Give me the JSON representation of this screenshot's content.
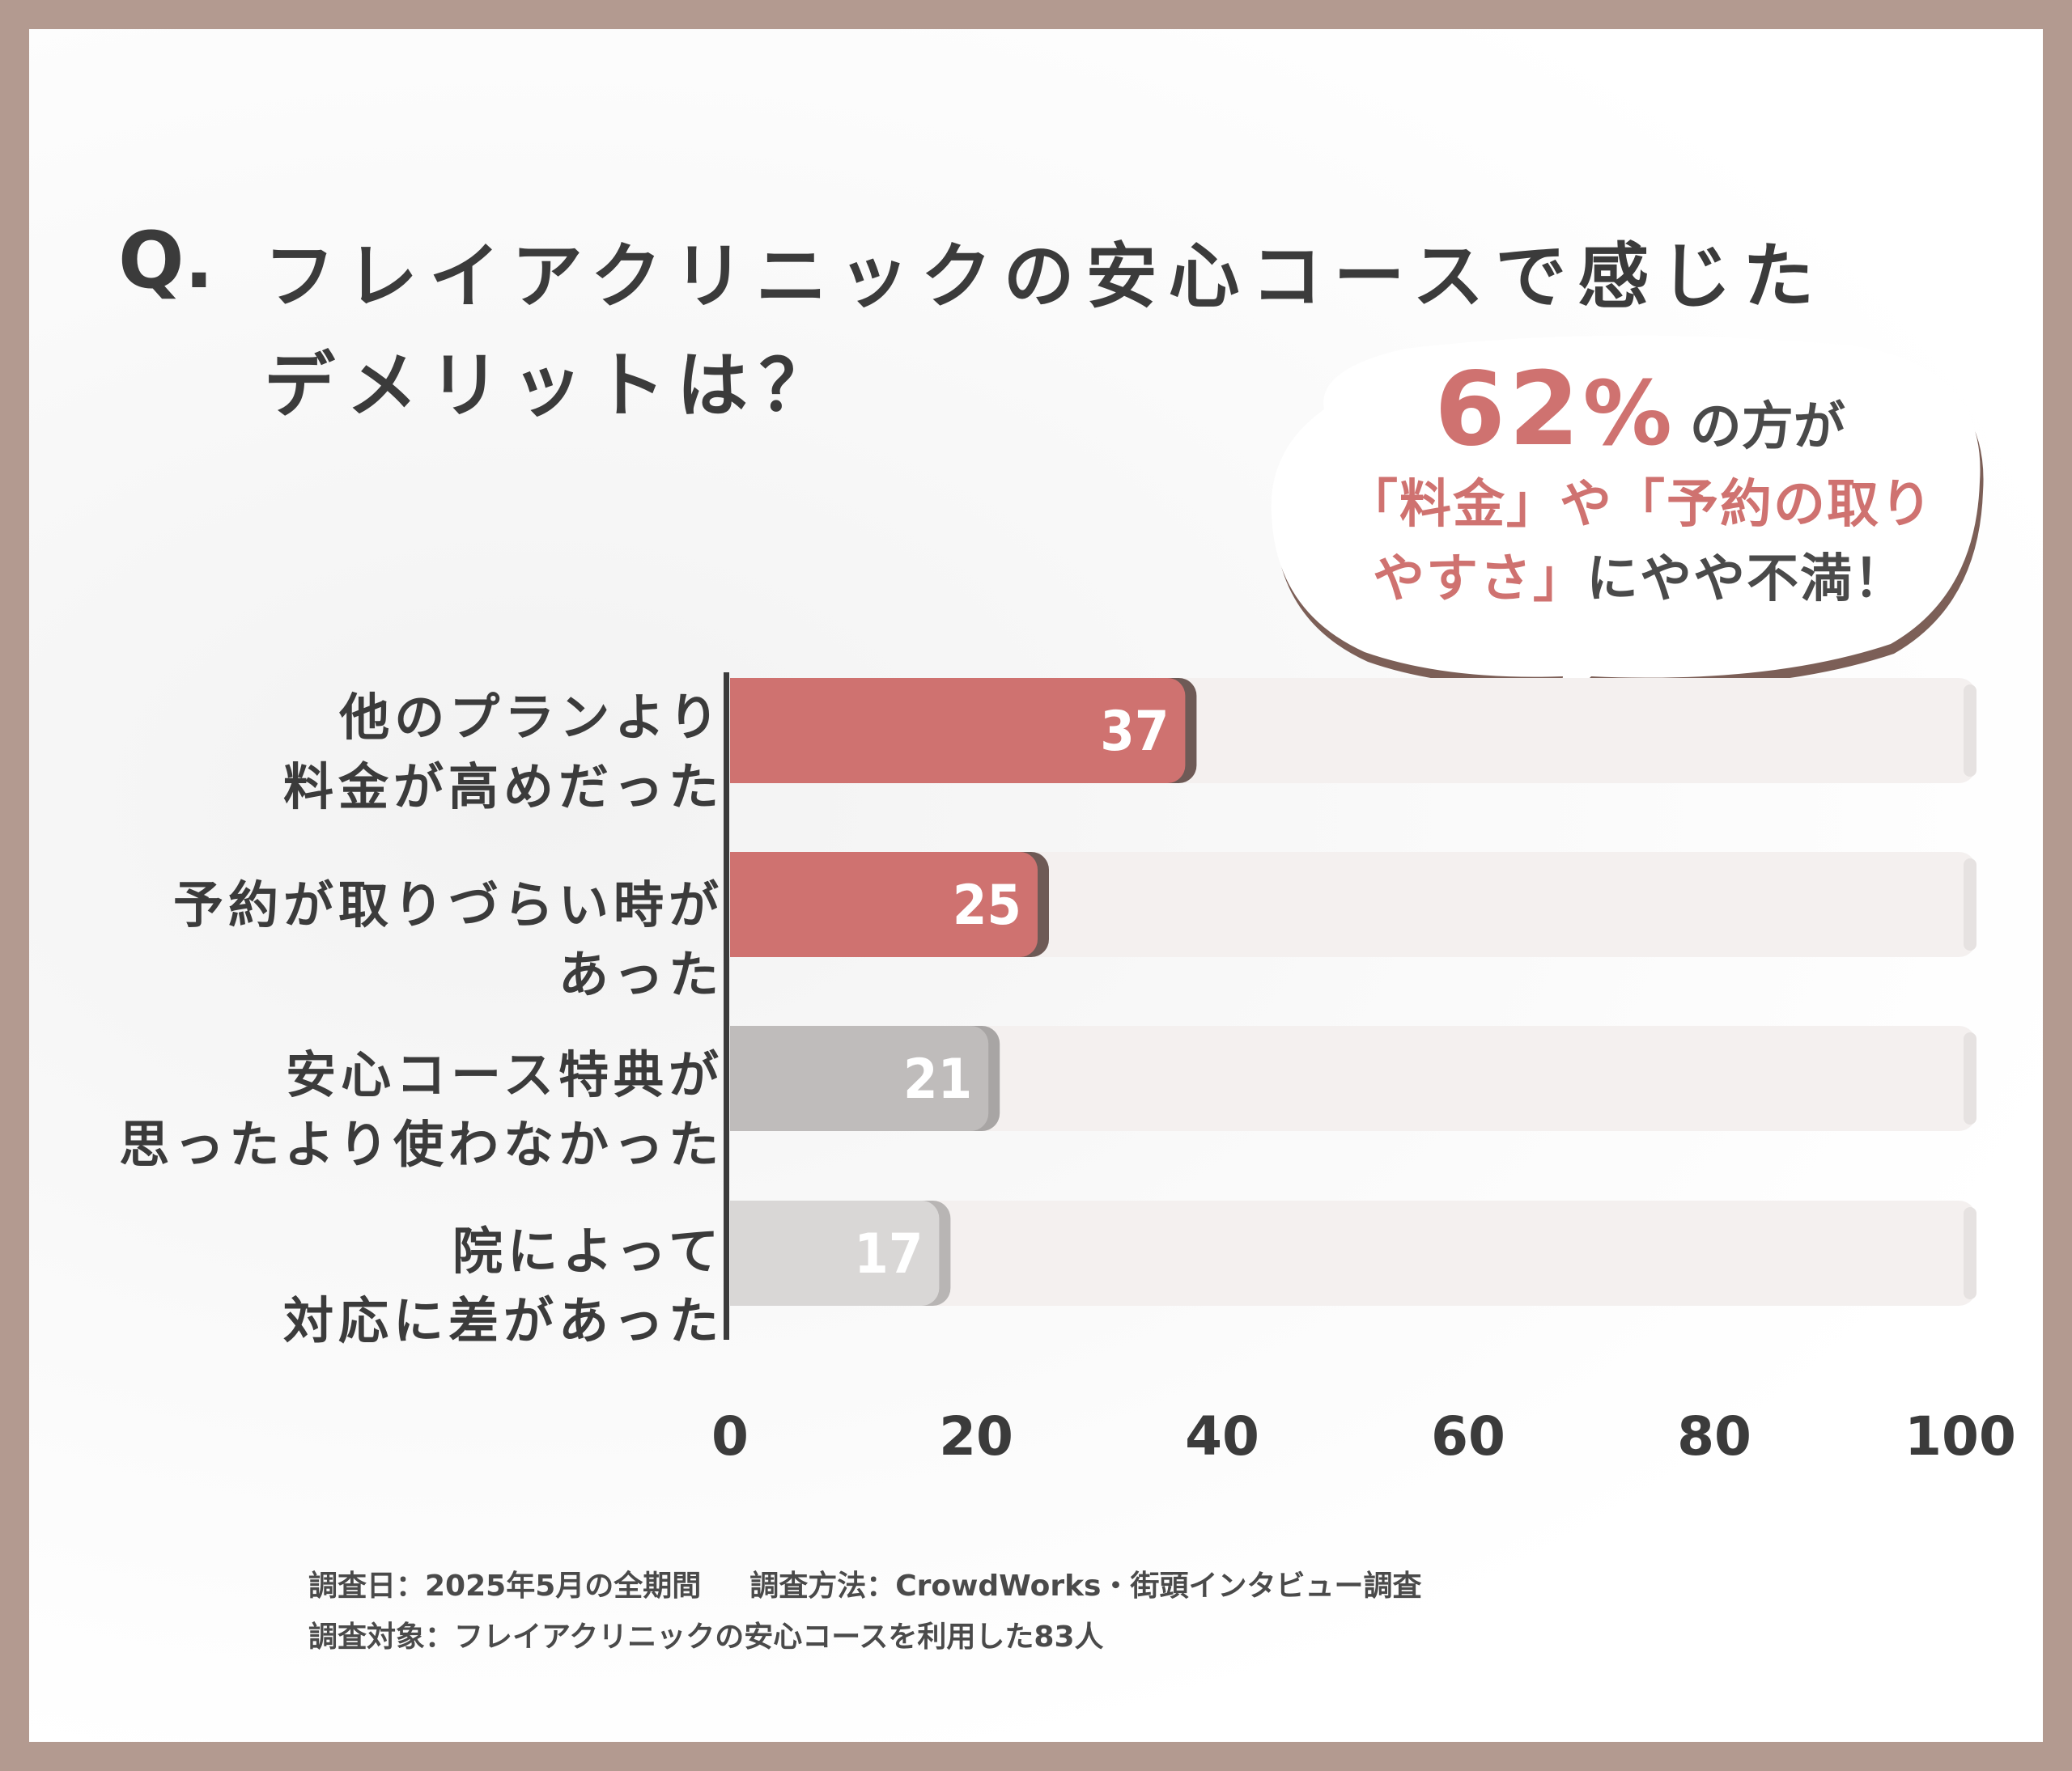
{
  "title": {
    "q_mark": "Q.",
    "line1": "フレイアクリニックの安心コースで感じた",
    "line2": "デメリットは？"
  },
  "callout": {
    "percent": "62",
    "percent_sign": "%",
    "line1_rest": "の方が",
    "line2_highlight": "「料金」や「予約の取り",
    "line3_highlight": "やすさ」",
    "line3_rest": "にやや不満！"
  },
  "chart_data": {
    "type": "bar",
    "orientation": "horizontal",
    "categories": [
      {
        "line1": "他のプランより",
        "line2": "料金が高めだった"
      },
      {
        "line1": "予約が取りづらい時が",
        "line2": "あった"
      },
      {
        "line1": "安心コース特典が",
        "line2": "思ったより使わなかった"
      },
      {
        "line1": "院によって",
        "line2": "対応に差があった"
      }
    ],
    "values": [
      37,
      25,
      21,
      17
    ],
    "value_labels": [
      "37",
      "25",
      "21",
      "17"
    ],
    "xlim": [
      0,
      100
    ],
    "ticks": [
      0,
      20,
      40,
      60,
      80,
      100
    ],
    "tick_labels": [
      "0",
      "20",
      "40",
      "60",
      "80",
      "100"
    ],
    "bar_colors": [
      "#cf7270",
      "#cf7270",
      "#bfbcbb",
      "#d9d7d6"
    ],
    "bar_shadow_colors": [
      "#6e5a56",
      "#6e5a56",
      "#a8a5a4",
      "#b8b5b4"
    ],
    "track_color": "#f4f0ef",
    "grid": false
  },
  "footer": {
    "date_label": "調査日：2025年5月の全期間",
    "method_label": "調査方法：CrowdWorks・街頭インタビュー調査",
    "target_label": "調査対象：フレイアクリニックの安心コースを利用した83人"
  }
}
